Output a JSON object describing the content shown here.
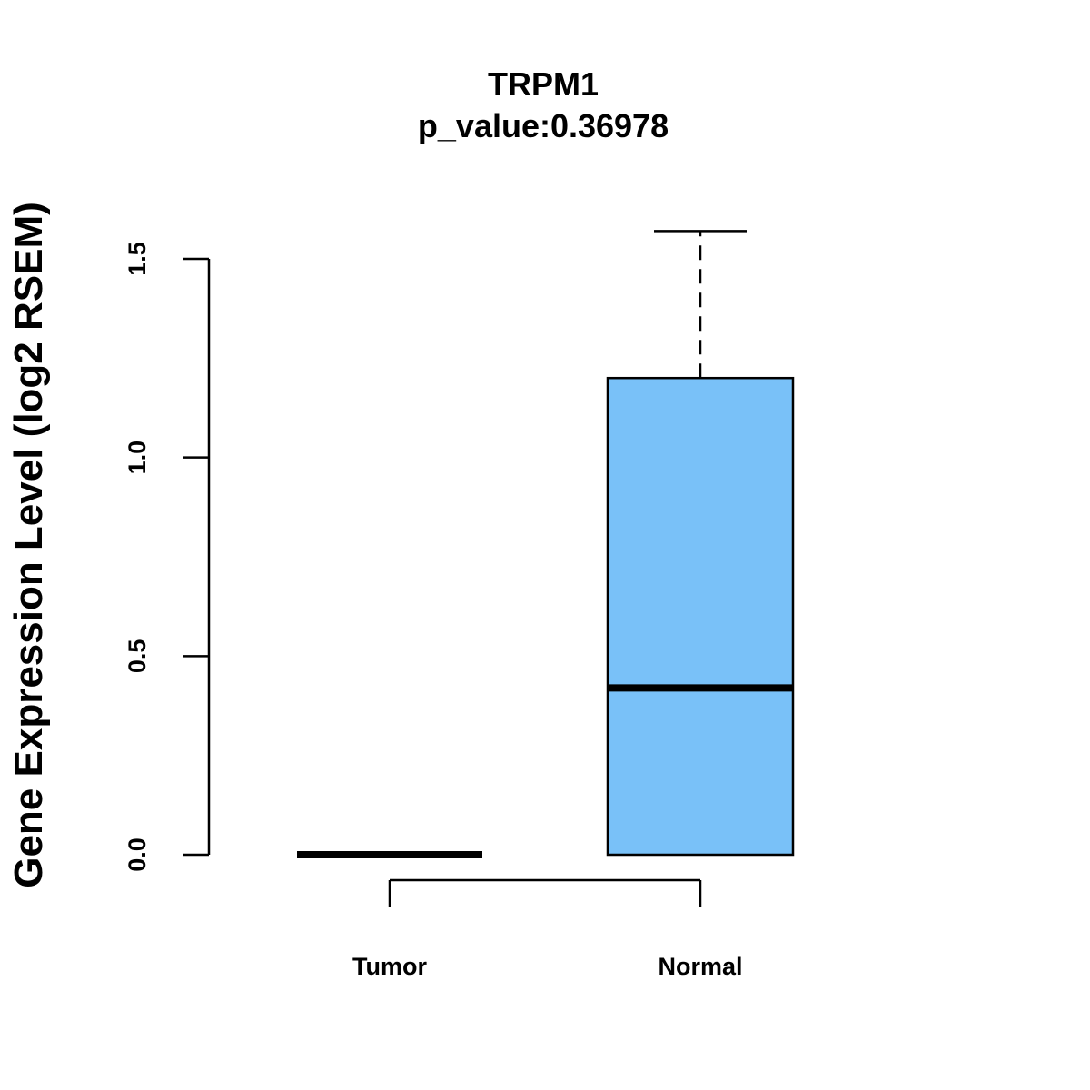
{
  "chart_data": {
    "type": "boxplot",
    "title": "TRPM1",
    "subtitle": "p_value:0.36978",
    "xlabel": "",
    "ylabel": "Gene Expression Level (log2 RSEM)",
    "ylim": [
      0,
      1.5
    ],
    "yticks": [
      "0.0",
      "0.5",
      "1.0",
      "1.5"
    ],
    "categories": [
      "Tumor",
      "Normal"
    ],
    "boxes": [
      {
        "name": "Tumor",
        "min": 0.0,
        "q1": 0.0,
        "median": 0.0,
        "q3": 0.0,
        "max": 0.0,
        "color": "#ffffff"
      },
      {
        "name": "Normal",
        "min": 0.0,
        "q1": 0.0,
        "median": 0.42,
        "q3": 1.2,
        "max": 1.57,
        "color": "#79C1F8"
      }
    ]
  }
}
